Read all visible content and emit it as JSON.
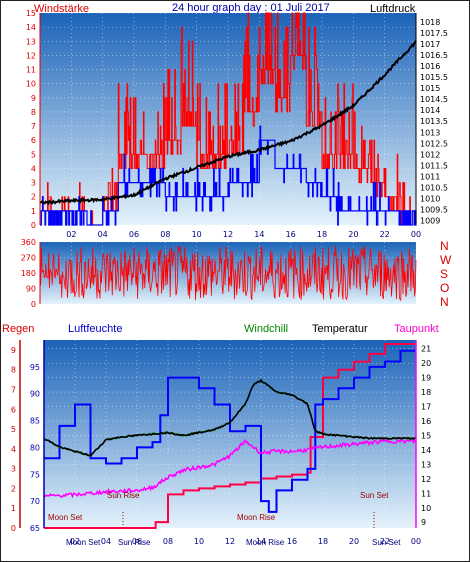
{
  "header": {
    "title": "24 hour graph day : 01 Juli 2017",
    "left_label": "Windstärke",
    "right_label": "Luftdruck"
  },
  "wind_dir_letters": [
    "N",
    "W",
    "S",
    "O",
    "N"
  ],
  "legend": {
    "regen": "Regen",
    "luftfeuchte": "Luftfeuchte",
    "windchill": "Windchill",
    "temperatur": "Temperatur",
    "taupunkt": "Taupunkt"
  },
  "colors": {
    "wind_gust": "#ff0000",
    "wind_avg": "#0000ff",
    "pressure": "#000000",
    "direction": "#ff0000",
    "rain": "#ff0044",
    "humidity": "#0000ff",
    "windchill": "#008800",
    "temperature": "#000000",
    "dewpoint": "#ff00ff",
    "rain_axis": "#cc0000",
    "humidity_axis": "#0000aa",
    "dew_axis": "#ff00ff"
  },
  "events": {
    "moon_set": "Moon Set",
    "sun_rise": "Sun Rise",
    "moon_rise": "Moon Rise",
    "sun_set": "Sun Set",
    "bottom_labels": [
      "Moon Set",
      "Sun Rise",
      "Moon Rise",
      "Sun Set"
    ]
  },
  "chart_data": [
    {
      "type": "line",
      "name": "wind_pressure",
      "xlabels": [
        "02",
        "04",
        "06",
        "08",
        "10",
        "12",
        "14",
        "16",
        "18",
        "20",
        "22",
        "00"
      ],
      "y_left_ticks": [
        "0",
        "1",
        "2",
        "3",
        "4",
        "5",
        "6",
        "7",
        "8",
        "9",
        "10",
        "11",
        "12",
        "13",
        "14",
        "15"
      ],
      "y_right_ticks": [
        "1009",
        "1009.5",
        "1010",
        "1010.5",
        "1011",
        "1011.5",
        "1012",
        "1012.5",
        "1013",
        "1013.5",
        "1014",
        "1014.5",
        "1015",
        "1015.5",
        "1016",
        "1016.5",
        "1017",
        "1017.5",
        "1018"
      ],
      "ylim_left": [
        0,
        15
      ],
      "ylim_right": [
        1008.8,
        1018.4
      ],
      "pressure": [
        [
          0,
          1009.8
        ],
        [
          2,
          1009.9
        ],
        [
          4,
          1009.95
        ],
        [
          6,
          1010.15
        ],
        [
          8,
          1010.9
        ],
        [
          10,
          1011.4
        ],
        [
          12,
          1011.9
        ],
        [
          14,
          1012.2
        ],
        [
          16,
          1012.6
        ],
        [
          18,
          1013.3
        ],
        [
          20,
          1014.2
        ],
        [
          22,
          1015.6
        ],
        [
          24,
          1017.1
        ]
      ],
      "wind_gust_level_by_hour": [
        1,
        1,
        1,
        0,
        2,
        5,
        5,
        5,
        6,
        8,
        5,
        5,
        6,
        8,
        11,
        9,
        12,
        8,
        5,
        5,
        4,
        3,
        2,
        1
      ],
      "wind_avg_level_by_hour": [
        1,
        1,
        1,
        0,
        1,
        3,
        3,
        3,
        2,
        2,
        2,
        2,
        3,
        3,
        6,
        4,
        4,
        3,
        2,
        1,
        1,
        1,
        1,
        1
      ]
    },
    {
      "type": "line",
      "name": "wind_direction",
      "y_ticks": [
        "0",
        "90",
        "180",
        "270",
        "360"
      ],
      "ylim": [
        0,
        360
      ],
      "mean_deg": 180,
      "range_deg": [
        20,
        340
      ]
    },
    {
      "type": "line",
      "name": "temperature_humidity",
      "xlabels": [
        "02",
        "04",
        "06",
        "08",
        "10",
        "12",
        "14",
        "16",
        "18",
        "20",
        "22",
        "00"
      ],
      "rain_ticks": [
        "0",
        "1",
        "2",
        "3",
        "4",
        "5",
        "6",
        "7",
        "8",
        "9"
      ],
      "humidity_ticks": [
        "65",
        "70",
        "75",
        "80",
        "85",
        "90",
        "95"
      ],
      "temp_ticks": [
        "9",
        "10",
        "11",
        "12",
        "13",
        "14",
        "15",
        "16",
        "17",
        "18",
        "19",
        "20",
        "21"
      ],
      "rain_ylim": [
        0,
        9.5
      ],
      "humidity_ylim": [
        65,
        100
      ],
      "temp_ylim": [
        8.6,
        21.6
      ],
      "temperature": [
        [
          0,
          14.8
        ],
        [
          1,
          14.2
        ],
        [
          2,
          13.9
        ],
        [
          3,
          13.6
        ],
        [
          4,
          14.7
        ],
        [
          5,
          14.9
        ],
        [
          6,
          15.0
        ],
        [
          7,
          15.1
        ],
        [
          8,
          15.2
        ],
        [
          9,
          15.0
        ],
        [
          10,
          15.2
        ],
        [
          11,
          15.4
        ],
        [
          12,
          15.9
        ],
        [
          13,
          17.2
        ],
        [
          13.5,
          18.5
        ],
        [
          14,
          18.8
        ],
        [
          15,
          18.0
        ],
        [
          16,
          17.8
        ],
        [
          17,
          17.2
        ],
        [
          17.5,
          15.3
        ],
        [
          18,
          15.1
        ],
        [
          19,
          15.0
        ],
        [
          20,
          14.9
        ],
        [
          21,
          14.8
        ],
        [
          22,
          14.8
        ],
        [
          23,
          14.8
        ],
        [
          24,
          14.8
        ]
      ],
      "dewpoint": [
        [
          0,
          10.8
        ],
        [
          2,
          10.9
        ],
        [
          4,
          11.1
        ],
        [
          6,
          11.2
        ],
        [
          7,
          11.4
        ],
        [
          8,
          12.1
        ],
        [
          9,
          12.6
        ],
        [
          10,
          12.8
        ],
        [
          11,
          13.0
        ],
        [
          12,
          13.6
        ],
        [
          13,
          14.6
        ],
        [
          14,
          13.8
        ],
        [
          15,
          13.9
        ],
        [
          16,
          13.9
        ],
        [
          17,
          14.0
        ],
        [
          18,
          14.2
        ],
        [
          19,
          14.3
        ],
        [
          20,
          14.4
        ],
        [
          21,
          14.5
        ],
        [
          22,
          14.6
        ],
        [
          23,
          14.6
        ],
        [
          24,
          14.6
        ]
      ],
      "humidity": [
        [
          0,
          78
        ],
        [
          1,
          84
        ],
        [
          2,
          88
        ],
        [
          3,
          78
        ],
        [
          4,
          77
        ],
        [
          5,
          78
        ],
        [
          6,
          80
        ],
        [
          7,
          81
        ],
        [
          7.5,
          86
        ],
        [
          8,
          93
        ],
        [
          9,
          93
        ],
        [
          10,
          91
        ],
        [
          11,
          88
        ],
        [
          12,
          83
        ],
        [
          13,
          84
        ],
        [
          14,
          70
        ],
        [
          14.5,
          68
        ],
        [
          15,
          72
        ],
        [
          16,
          74
        ],
        [
          17,
          76
        ],
        [
          17.5,
          88
        ],
        [
          18,
          89
        ],
        [
          19,
          91
        ],
        [
          20,
          93
        ],
        [
          21,
          95
        ],
        [
          22,
          96
        ],
        [
          23,
          98
        ],
        [
          24,
          98
        ]
      ],
      "rain": [
        [
          0,
          0
        ],
        [
          7,
          0
        ],
        [
          7.2,
          0.3
        ],
        [
          8,
          1.7
        ],
        [
          9,
          1.9
        ],
        [
          10,
          2.0
        ],
        [
          11,
          2.1
        ],
        [
          12,
          2.2
        ],
        [
          13,
          2.3
        ],
        [
          14,
          2.5
        ],
        [
          15,
          2.6
        ],
        [
          16,
          2.7
        ],
        [
          17,
          2.8
        ],
        [
          17.2,
          4.6
        ],
        [
          18,
          7.6
        ],
        [
          19,
          8.0
        ],
        [
          20,
          8.4
        ],
        [
          21,
          8.8
        ],
        [
          22,
          9.3
        ],
        [
          24,
          9.3
        ]
      ]
    }
  ]
}
